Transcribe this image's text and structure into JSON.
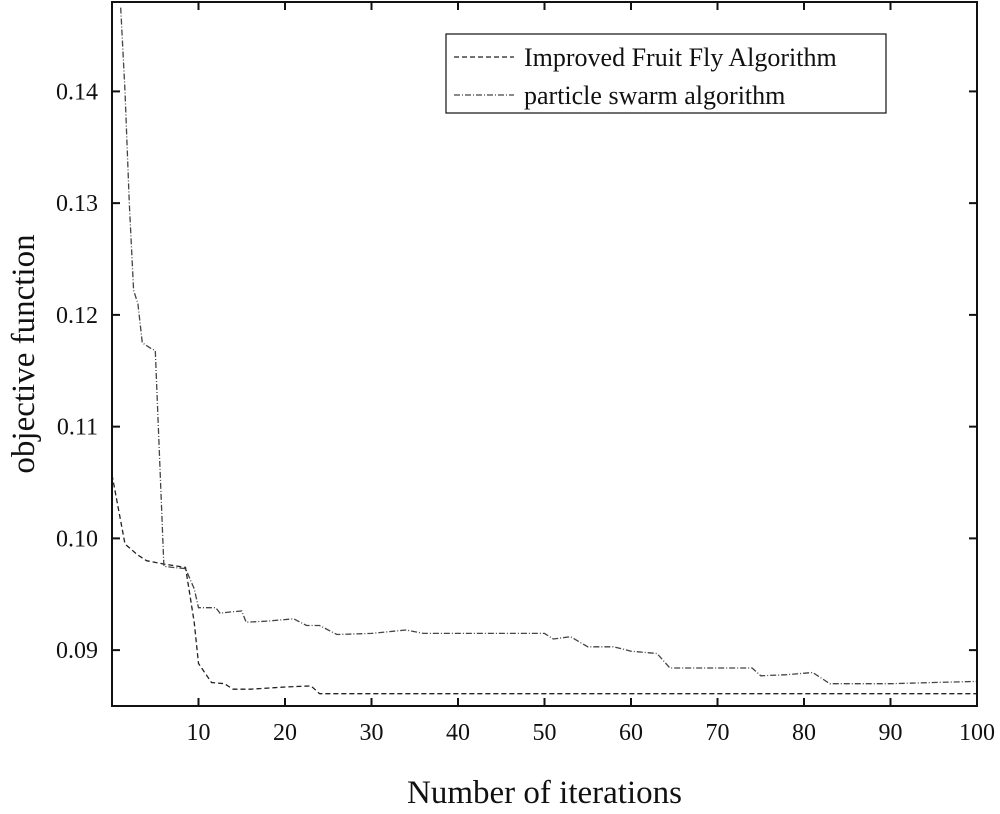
{
  "chart_data": {
    "type": "line",
    "title": "",
    "xlabel": "Number of iterations",
    "ylabel": "objective function",
    "xlim": [
      0,
      100
    ],
    "ylim": [
      0.085,
      0.148
    ],
    "x_ticks": [
      10,
      20,
      30,
      40,
      50,
      60,
      70,
      80,
      90,
      100
    ],
    "y_ticks": [
      0.09,
      0.1,
      0.11,
      0.12,
      0.13,
      0.14
    ],
    "y_tick_labels": [
      "0.09",
      "0.10",
      "0.11",
      "0.12",
      "0.13",
      "0.14"
    ],
    "grid": false,
    "legend_position": "top-right",
    "series": [
      {
        "name": "Improved Fruit Fly Algorithm",
        "line_style": "dashed",
        "color": "#222222",
        "points": [
          [
            0,
            0.1057
          ],
          [
            1.5,
            0.0995
          ],
          [
            3,
            0.0985
          ],
          [
            4,
            0.098
          ],
          [
            6,
            0.0977
          ],
          [
            8.5,
            0.0974
          ],
          [
            9,
            0.095
          ],
          [
            9.5,
            0.0925
          ],
          [
            10,
            0.0888
          ],
          [
            11.5,
            0.0871
          ],
          [
            13,
            0.087
          ],
          [
            14,
            0.0865
          ],
          [
            16,
            0.0865
          ],
          [
            18,
            0.0866
          ],
          [
            20,
            0.0867
          ],
          [
            23,
            0.0868
          ],
          [
            24,
            0.0861
          ],
          [
            30,
            0.0861
          ],
          [
            40,
            0.0861
          ],
          [
            50,
            0.0861
          ],
          [
            60,
            0.0861
          ],
          [
            70,
            0.0861
          ],
          [
            80,
            0.0861
          ],
          [
            90,
            0.0861
          ],
          [
            100,
            0.0861
          ]
        ]
      },
      {
        "name": "particle swarm algorithm",
        "line_style": "dash-dot",
        "color": "#444444",
        "points": [
          [
            1,
            0.1475
          ],
          [
            1.5,
            0.14
          ],
          [
            2,
            0.13
          ],
          [
            2.5,
            0.1222
          ],
          [
            3,
            0.121
          ],
          [
            3.5,
            0.1175
          ],
          [
            4.5,
            0.117
          ],
          [
            5,
            0.1168
          ],
          [
            6,
            0.0975
          ],
          [
            7,
            0.0974
          ],
          [
            8.5,
            0.0973
          ],
          [
            9.5,
            0.0955
          ],
          [
            10,
            0.0938
          ],
          [
            12,
            0.0938
          ],
          [
            12.5,
            0.0933
          ],
          [
            13.5,
            0.0934
          ],
          [
            15,
            0.0935
          ],
          [
            15.5,
            0.0925
          ],
          [
            18,
            0.0926
          ],
          [
            21,
            0.0928
          ],
          [
            22.5,
            0.0922
          ],
          [
            24,
            0.0922
          ],
          [
            26,
            0.0914
          ],
          [
            30,
            0.0915
          ],
          [
            34,
            0.0918
          ],
          [
            36,
            0.0915
          ],
          [
            40,
            0.0915
          ],
          [
            45,
            0.0915
          ],
          [
            50,
            0.0915
          ],
          [
            51,
            0.091
          ],
          [
            53,
            0.0912
          ],
          [
            55,
            0.0903
          ],
          [
            58,
            0.0903
          ],
          [
            60,
            0.0899
          ],
          [
            63,
            0.0897
          ],
          [
            64.5,
            0.0884
          ],
          [
            70,
            0.0884
          ],
          [
            74,
            0.0884
          ],
          [
            75,
            0.0877
          ],
          [
            78,
            0.0878
          ],
          [
            81,
            0.088
          ],
          [
            83,
            0.087
          ],
          [
            90,
            0.087
          ],
          [
            95,
            0.0871
          ],
          [
            100,
            0.0872
          ]
        ]
      }
    ]
  }
}
